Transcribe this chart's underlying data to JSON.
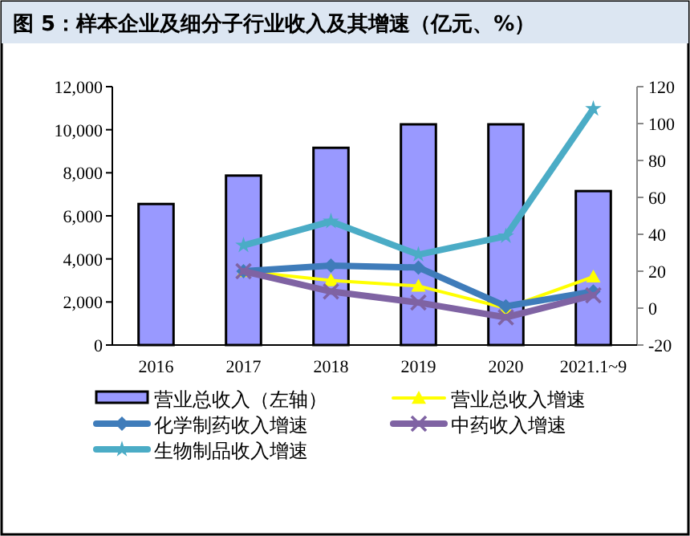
{
  "chart_data": {
    "type": "bar",
    "title": "图 5：样本企业及细分子行业收入及其增速（亿元、%）",
    "categories": [
      "2016",
      "2017",
      "2018",
      "2019",
      "2020",
      "2021.1~9"
    ],
    "series": [
      {
        "name": "营业总收入（左轴）",
        "color": "#9999ff",
        "values": [
          6550,
          7870,
          9160,
          10250,
          10250,
          7150
        ]
      },
      {
        "name": "营业总收入增速",
        "type": "line",
        "axis": "y2",
        "color": "#ffff00",
        "marker": "triangle",
        "values": [
          null,
          20,
          15,
          12,
          0,
          17
        ]
      },
      {
        "name": "化学制药收入增速",
        "type": "line",
        "axis": "y2",
        "color": "#3f7cba",
        "marker": "diamond",
        "values": [
          null,
          20,
          23,
          22,
          1,
          9
        ]
      },
      {
        "name": "中药收入增速",
        "type": "line",
        "axis": "y2",
        "color": "#7f63a3",
        "marker": "cross",
        "values": [
          null,
          20,
          9,
          3,
          -5,
          7
        ]
      },
      {
        "name": "生物制品收入增速",
        "type": "line",
        "axis": "y2",
        "color": "#4bacc6",
        "marker": "star",
        "values": [
          null,
          34,
          47,
          29,
          39,
          108
        ]
      }
    ],
    "ylim": [
      0,
      12000
    ],
    "yticks": [
      0,
      {
        "value": 2000,
        "label": "2,000"
      },
      {
        "value": 4000,
        "label": "4,000"
      },
      {
        "value": 6000,
        "label": "6,000"
      },
      {
        "value": 8000,
        "label": "8,000"
      },
      {
        "value": 10000,
        "label": "10,000"
      },
      {
        "value": 12000,
        "label": "12,000"
      }
    ],
    "y2lim": [
      -20,
      120
    ],
    "y2ticks": [
      -20,
      0,
      20,
      40,
      60,
      80,
      100,
      120
    ],
    "legend": "bottom",
    "grid": false
  }
}
